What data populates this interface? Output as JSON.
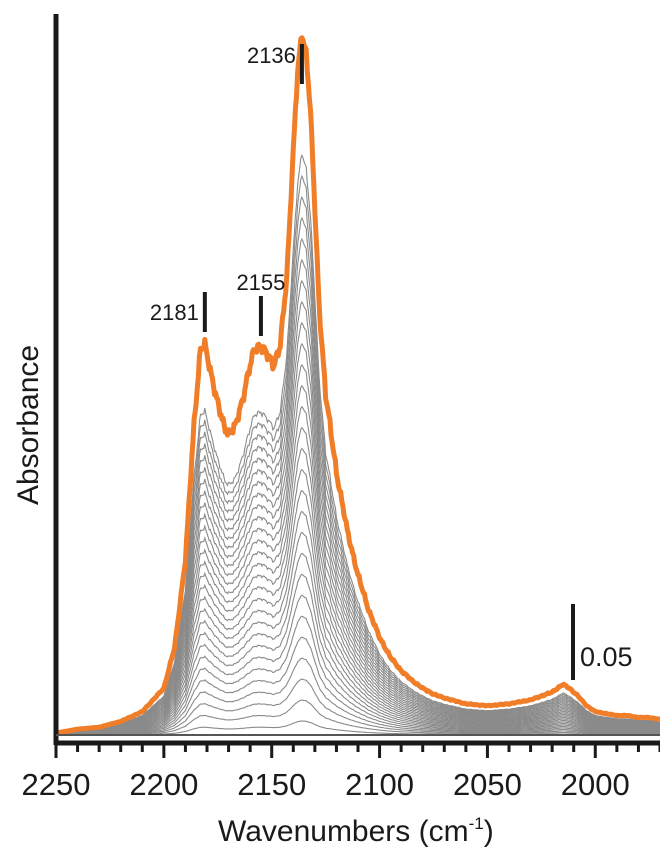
{
  "chart_data": {
    "type": "line",
    "xlabel_main": "Wavenumbers (cm",
    "xlabel_sup": "-1",
    "xlabel_tail": ")",
    "ylabel": "Absorbance",
    "x_reversed": true,
    "xlim": [
      2250,
      1970
    ],
    "ylim": [
      0,
      0.37
    ],
    "x_ticks": [
      2250,
      2200,
      2150,
      2100,
      2050,
      2000
    ],
    "x_tick_labels": [
      "2250",
      "2200",
      "2150",
      "2100",
      "2050",
      "2000"
    ],
    "grid": false,
    "scale_bar": {
      "value": 0.05,
      "label": "0.05"
    },
    "peaks": [
      {
        "x": 2181,
        "label": "2181"
      },
      {
        "x": 2155,
        "label": "2155"
      },
      {
        "x": 2136,
        "label": "2136"
      }
    ],
    "colors": {
      "final_series": "#f07d28",
      "intermediate_series": "#8a8a8a",
      "axis": "#1a1a1a"
    },
    "final_spectrum": {
      "x": [
        2250,
        2240,
        2230,
        2220,
        2210,
        2200,
        2195,
        2190,
        2186,
        2183,
        2181,
        2178,
        2175,
        2172,
        2170,
        2167,
        2164,
        2161,
        2158,
        2155,
        2152,
        2149,
        2146,
        2143,
        2140,
        2138,
        2136,
        2134,
        2132,
        2130,
        2128,
        2125,
        2120,
        2115,
        2110,
        2105,
        2100,
        2095,
        2090,
        2085,
        2080,
        2075,
        2070,
        2060,
        2050,
        2040,
        2030,
        2020,
        2015,
        2012,
        2008,
        2004,
        2000,
        1995,
        1990,
        1985,
        1980,
        1975,
        1970
      ],
      "y": [
        0.001,
        0.003,
        0.004,
        0.007,
        0.012,
        0.024,
        0.045,
        0.09,
        0.16,
        0.198,
        0.2,
        0.185,
        0.17,
        0.158,
        0.155,
        0.158,
        0.17,
        0.185,
        0.198,
        0.2,
        0.195,
        0.19,
        0.2,
        0.235,
        0.3,
        0.34,
        0.36,
        0.35,
        0.32,
        0.27,
        0.22,
        0.175,
        0.135,
        0.105,
        0.082,
        0.064,
        0.05,
        0.04,
        0.033,
        0.028,
        0.024,
        0.021,
        0.019,
        0.016,
        0.015,
        0.016,
        0.018,
        0.022,
        0.026,
        0.024,
        0.02,
        0.015,
        0.012,
        0.011,
        0.01,
        0.01,
        0.009,
        0.009,
        0.008
      ]
    },
    "series_scales": [
      0.02,
      0.05,
      0.08,
      0.11,
      0.14,
      0.17,
      0.2,
      0.23,
      0.26,
      0.29,
      0.32,
      0.35,
      0.38,
      0.41,
      0.44,
      0.47,
      0.5,
      0.53,
      0.56,
      0.59,
      0.62,
      0.65,
      0.68,
      0.71,
      0.74,
      0.77,
      0.8,
      0.83
    ]
  }
}
